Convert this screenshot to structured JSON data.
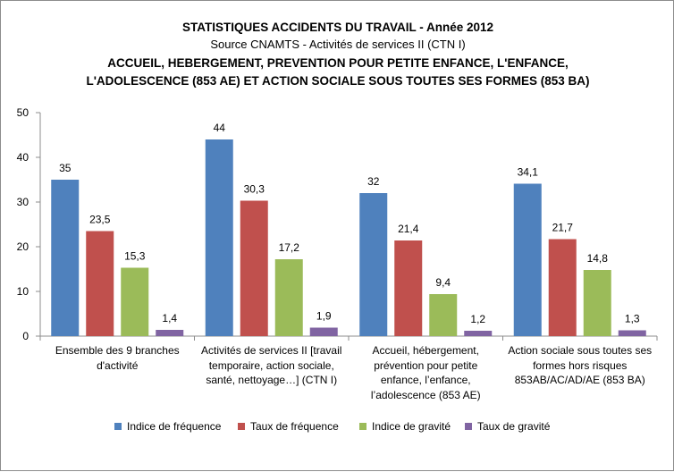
{
  "title_lines": [
    "STATISTIQUES ACCIDENTS DU TRAVAIL - Année 2012",
    "Source  CNAMTS - Activités de services II (CTN I)",
    "ACCUEIL,  HEBERGEMENT, PREVENTION POUR PETITE ENFANCE, L'ENFANCE,",
    "L'ADOLESCENCE (853 AE) ET ACTION SOCIALE SOUS TOUTES SES FORMES (853 BA)"
  ],
  "colors": {
    "Indice de fréquence": "#4f81bd",
    "Taux de fréquence": "#c0504d",
    "Indice de gravité": "#9bbb59",
    "Taux de gravité": "#8064a2"
  },
  "chart_data": {
    "type": "bar",
    "title": "STATISTIQUES ACCIDENTS DU TRAVAIL - Année 2012",
    "categories": [
      [
        "Ensemble des 9 branches",
        "d'activité"
      ],
      [
        "Activités de services II [travail",
        "temporaire, action sociale,",
        "santé, nettoyage…] (CTN I)"
      ],
      [
        "Accueil, hébergement,",
        "prévention pour petite",
        "enfance, l’enfance,",
        "l’adolescence (853 AE)"
      ],
      [
        "Action sociale sous toutes ses",
        "formes hors risques",
        "853AB/AC/AD/AE (853 BA)"
      ]
    ],
    "series": [
      {
        "name": "Indice de fréquence",
        "values": [
          35,
          44,
          32,
          34.1
        ],
        "labels": [
          "35",
          "44",
          "32",
          "34,1"
        ]
      },
      {
        "name": "Taux de fréquence",
        "values": [
          23.5,
          30.3,
          21.4,
          21.7
        ],
        "labels": [
          "23,5",
          "30,3",
          "21,4",
          "21,7"
        ]
      },
      {
        "name": "Indice de gravité",
        "values": [
          15.3,
          17.2,
          9.4,
          14.8
        ],
        "labels": [
          "15,3",
          "17,2",
          "9,4",
          "14,8"
        ]
      },
      {
        "name": "Taux de gravité",
        "values": [
          1.4,
          1.9,
          1.2,
          1.3
        ],
        "labels": [
          "1,4",
          "1,9",
          "1,2",
          "1,3"
        ]
      }
    ],
    "ylim": [
      0,
      50
    ],
    "yticks": [
      "0",
      "10",
      "20",
      "30",
      "40",
      "50"
    ],
    "grid": false,
    "legend_position": "bottom"
  }
}
